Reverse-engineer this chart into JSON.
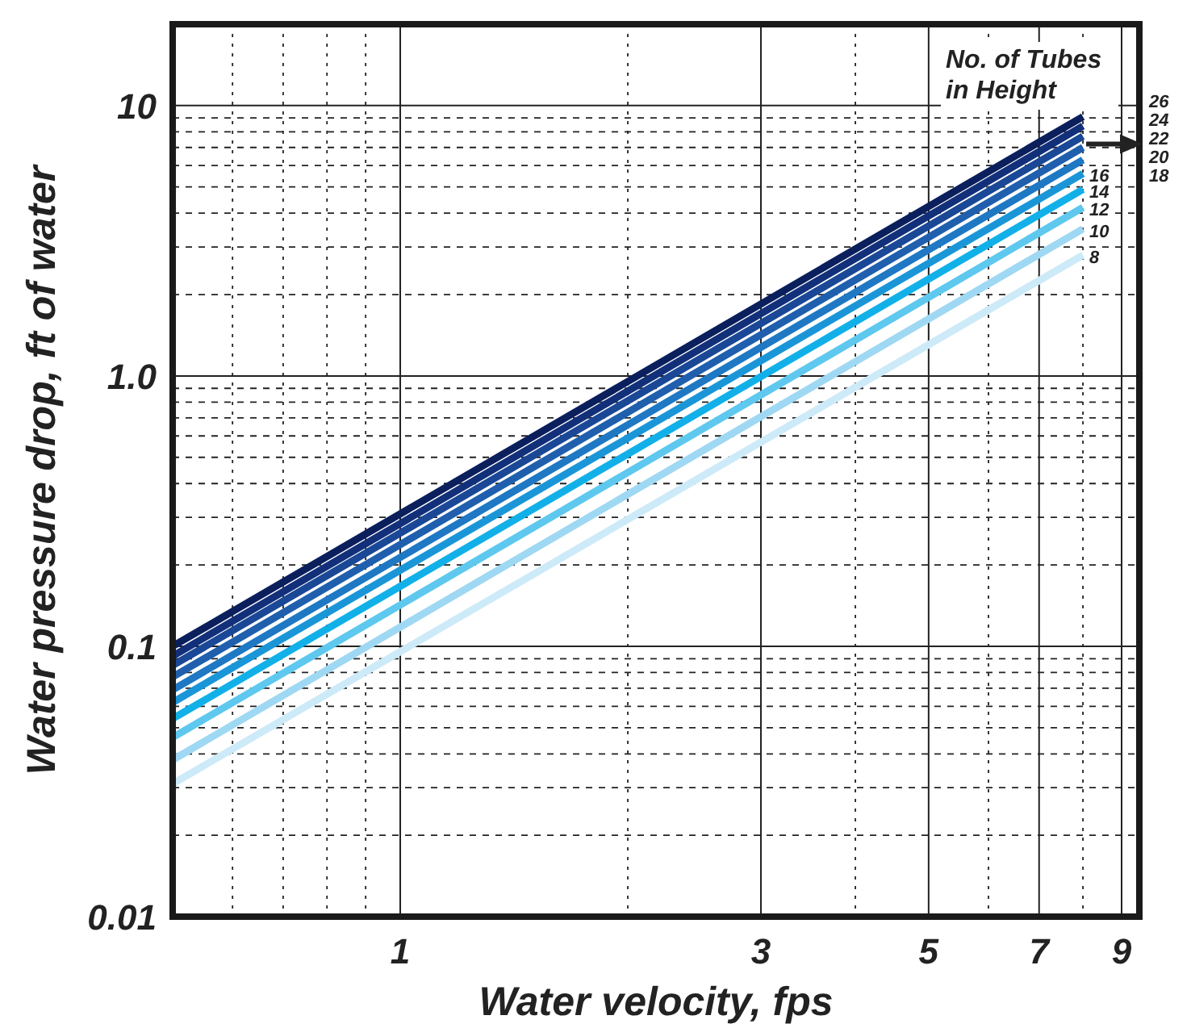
{
  "chart_data": {
    "type": "line",
    "xlabel": "Water velocity, fps",
    "ylabel": "Water pressure drop, ft of water",
    "legend_title": "No. of Tubes in Height",
    "log": "xy",
    "grid": true,
    "marker": "none",
    "line_style": "solid",
    "x": [
      0.5,
      8
    ],
    "xlim": [
      0.5,
      9.5
    ],
    "xticks": [
      {
        "value": 0.6,
        "label": null
      },
      {
        "value": 0.7,
        "label": null
      },
      {
        "value": 0.8,
        "label": null
      },
      {
        "value": 0.9,
        "label": null
      },
      1,
      {
        "value": 2,
        "label": null
      },
      3,
      {
        "value": 4,
        "label": null
      },
      5,
      {
        "value": 6,
        "label": null
      },
      7,
      {
        "value": 8,
        "label": null
      },
      9
    ],
    "ylim": [
      0.01,
      20
    ],
    "yticks": [
      0.01,
      {
        "value": 0.02,
        "label": null
      },
      {
        "value": 0.03,
        "label": null
      },
      {
        "value": 0.04,
        "label": null
      },
      {
        "value": 0.05,
        "label": null
      },
      {
        "value": 0.06,
        "label": null
      },
      {
        "value": 0.07,
        "label": null
      },
      {
        "value": 0.08,
        "label": null
      },
      {
        "value": 0.09,
        "label": null
      },
      0.1,
      {
        "value": 0.2,
        "label": null
      },
      {
        "value": 0.3,
        "label": null
      },
      {
        "value": 0.4,
        "label": null
      },
      {
        "value": 0.5,
        "label": null
      },
      {
        "value": 0.6,
        "label": null
      },
      {
        "value": 0.7,
        "label": null
      },
      {
        "value": 0.8,
        "label": null
      },
      {
        "value": 0.9,
        "label": null
      },
      {
        "value": 1,
        "label": "1.0"
      },
      {
        "value": 2,
        "label": null
      },
      {
        "value": 3,
        "label": null
      },
      {
        "value": 4,
        "label": null
      },
      {
        "value": 5,
        "label": null
      },
      {
        "value": 6,
        "label": null
      },
      {
        "value": 7,
        "label": null
      },
      {
        "value": 8,
        "label": null
      },
      {
        "value": 9,
        "label": null
      },
      10
    ],
    "series": [
      {
        "name": "26",
        "color": "#0a1f5c",
        "values": [
          0.1,
          9.1
        ]
      },
      {
        "name": "24",
        "color": "#12307a",
        "values": [
          0.092,
          8.4
        ]
      },
      {
        "name": "22",
        "color": "#1a4896",
        "values": [
          0.085,
          7.7
        ]
      },
      {
        "name": "20",
        "color": "#1f5fae",
        "values": [
          0.077,
          7.0
        ]
      },
      {
        "name": "18",
        "color": "#1e78c4",
        "values": [
          0.069,
          6.3
        ]
      },
      {
        "name": "16",
        "color": "#1a96d8",
        "values": [
          0.062,
          5.6
        ]
      },
      {
        "name": "14",
        "color": "#12b0e8",
        "values": [
          0.054,
          4.9
        ]
      },
      {
        "name": "12",
        "color": "#5ec8ef",
        "values": [
          0.046,
          4.2
        ]
      },
      {
        "name": "10",
        "color": "#9fd8f3",
        "values": [
          0.038,
          3.5
        ]
      },
      {
        "name": "8",
        "color": "#cdeaf8",
        "values": [
          0.031,
          2.8
        ]
      }
    ]
  }
}
